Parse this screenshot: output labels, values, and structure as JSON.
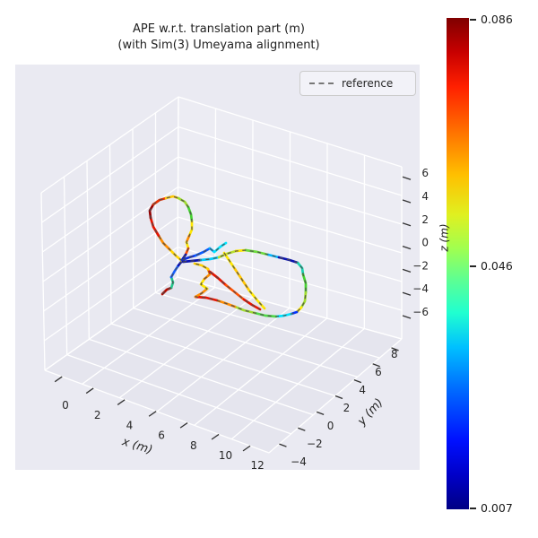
{
  "title": {
    "line1": "APE w.r.t. translation part (m)",
    "line2": "(with Sim(3) Umeyama alignment)"
  },
  "legend": {
    "items": [
      {
        "label": "reference",
        "line_style": "dashed",
        "line_color": "#777777"
      }
    ]
  },
  "axes": {
    "x": {
      "label": "x (m)",
      "tick_labels": [
        "0",
        "2",
        "4",
        "6",
        "8",
        "10",
        "12"
      ]
    },
    "y": {
      "label": "y (m)",
      "tick_labels": [
        "−4",
        "−2",
        "0",
        "2",
        "4",
        "6",
        "8"
      ]
    },
    "z": {
      "label": "z (m)",
      "tick_labels": [
        "−6",
        "−4",
        "−2",
        "0",
        "2",
        "4",
        "6"
      ]
    }
  },
  "colorbar": {
    "tick_labels": [
      "0.086",
      "0.046",
      "0.007"
    ],
    "min": 0.007,
    "mid": 0.046,
    "max": 0.086,
    "colormap": "jet",
    "stops": [
      "#000084 0%",
      "#0000c8 7%",
      "#0010ff 14%",
      "#0070ff 25%",
      "#00c0ff 33%",
      "#20ffd0 40%",
      "#60ff90 47%",
      "#a0ff50 53%",
      "#e0f020 60%",
      "#ffc000 68%",
      "#ff7000 77%",
      "#ff2000 86%",
      "#c80000 93%",
      "#800000 100%"
    ]
  },
  "chart_data": {
    "type": "line",
    "plot_kind": "3d_trajectory_colored_by_error_with_dashed_reference",
    "title": "APE w.r.t. translation part (m) (with Sim(3) Umeyama alignment)",
    "xlabel": "x (m)",
    "ylabel": "y (m)",
    "zlabel": "z (m)",
    "xticks": [
      0,
      2,
      4,
      6,
      8,
      10,
      12
    ],
    "yticks": [
      -4,
      -2,
      0,
      2,
      4,
      6,
      8
    ],
    "zticks": [
      -6,
      -4,
      -2,
      0,
      2,
      4,
      6
    ],
    "colorbar_range": [
      0.007,
      0.086
    ],
    "colorbar_mid_tick": 0.046,
    "legend_entries": [
      "reference"
    ],
    "grid": true,
    "chains": [
      {
        "name": "start_spur",
        "segs": [
          {
            "c": "#b30b00",
            "p": [
              [
                181,
                328
              ],
              [
                186,
                323
              ],
              [
                191,
                321
              ]
            ]
          },
          {
            "c": "#22c98c",
            "p": [
              [
                191,
                321
              ],
              [
                193,
                315
              ],
              [
                191,
                309
              ]
            ]
          },
          {
            "c": "#1560ff",
            "p": [
              [
                191,
                309
              ],
              [
                195,
                302
              ],
              [
                199,
                296
              ]
            ]
          },
          {
            "c": "#0a12b0",
            "p": [
              [
                199,
                296
              ],
              [
                203,
                291
              ]
            ]
          }
        ]
      },
      {
        "name": "upper_left_loop",
        "segs": [
          {
            "c": "#ffd500",
            "p": [
              [
                203,
                291
              ],
              [
                196,
                285
              ],
              [
                189,
                278
              ]
            ]
          },
          {
            "c": "#ff8c00",
            "p": [
              [
                189,
                278
              ],
              [
                182,
                271
              ],
              [
                177,
                263
              ]
            ]
          },
          {
            "c": "#e81500",
            "p": [
              [
                177,
                263
              ],
              [
                171,
                253
              ],
              [
                168,
                243
              ]
            ]
          },
          {
            "c": "#950000",
            "p": [
              [
                168,
                243
              ],
              [
                167,
                235
              ],
              [
                171,
                228
              ]
            ]
          },
          {
            "c": "#e83200",
            "p": [
              [
                171,
                228
              ],
              [
                178,
                223
              ],
              [
                185,
                221
              ]
            ]
          },
          {
            "c": "#ffc800",
            "p": [
              [
                185,
                221
              ],
              [
                193,
                219
              ],
              [
                199,
                221
              ]
            ]
          },
          {
            "c": "#9fdc2e",
            "p": [
              [
                199,
                221
              ],
              [
                206,
                225
              ],
              [
                210,
                231
              ]
            ]
          },
          {
            "c": "#45d430",
            "p": [
              [
                210,
                231
              ],
              [
                213,
                239
              ],
              [
                214,
                247
              ]
            ]
          },
          {
            "c": "#ffe800",
            "p": [
              [
                214,
                247
              ],
              [
                214,
                256
              ],
              [
                211,
                263
              ]
            ]
          },
          {
            "c": "#ff8c00",
            "p": [
              [
                211,
                263
              ],
              [
                208,
                270
              ]
            ]
          },
          {
            "c": "#ffe800",
            "p": [
              [
                208,
                270
              ],
              [
                210,
                277
              ]
            ]
          },
          {
            "c": "#ff5000",
            "p": [
              [
                210,
                277
              ],
              [
                207,
                284
              ]
            ]
          },
          {
            "c": "#0a12b0",
            "p": [
              [
                207,
                284
              ],
              [
                203,
                290
              ]
            ]
          }
        ]
      },
      {
        "name": "spur_up_right",
        "segs": [
          {
            "c": "#0a30e0",
            "p": [
              [
                203,
                290
              ],
              [
                211,
                287
              ],
              [
                218,
                285
              ]
            ]
          },
          {
            "c": "#0a5cff",
            "p": [
              [
                218,
                285
              ],
              [
                227,
                281
              ],
              [
                234,
                277
              ]
            ]
          },
          {
            "c": "#00b7ff",
            "p": [
              [
                234,
                277
              ],
              [
                239,
                281
              ]
            ]
          },
          {
            "c": "#00e5ff",
            "p": [
              [
                239,
                281
              ],
              [
                246,
                275
              ],
              [
                252,
                271
              ]
            ]
          }
        ]
      },
      {
        "name": "main_right_loops",
        "segs": [
          {
            "c": "#0a12b0",
            "p": [
              [
                204,
                292
              ],
              [
                214,
                291
              ],
              [
                224,
                290
              ]
            ]
          },
          {
            "c": "#00cfff",
            "p": [
              [
                224,
                290
              ],
              [
                234,
                289
              ],
              [
                244,
                287
              ]
            ]
          },
          {
            "c": "#b8e02e",
            "p": [
              [
                244,
                287
              ],
              [
                253,
                283
              ],
              [
                263,
                280
              ]
            ]
          },
          {
            "c": "#ffe800",
            "p": [
              [
                263,
                280
              ],
              [
                274,
                279
              ]
            ]
          },
          {
            "c": "#6edc3d",
            "p": [
              [
                274,
                279
              ],
              [
                287,
                281
              ],
              [
                299,
                284
              ]
            ]
          },
          {
            "c": "#00b7ff",
            "p": [
              [
                299,
                284
              ],
              [
                311,
                287
              ]
            ]
          },
          {
            "c": "#0a12b0",
            "p": [
              [
                311,
                287
              ],
              [
                323,
                290
              ],
              [
                332,
                293
              ]
            ]
          },
          {
            "c": "#19d3b0",
            "p": [
              [
                332,
                293
              ],
              [
                337,
                299
              ],
              [
                338,
                306
              ]
            ]
          },
          {
            "c": "#45d430",
            "p": [
              [
                338,
                306
              ],
              [
                341,
                316
              ],
              [
                341,
                326
              ]
            ]
          },
          {
            "c": "#9fdc2e",
            "p": [
              [
                341,
                326
              ],
              [
                340,
                336
              ],
              [
                336,
                343
              ]
            ]
          },
          {
            "c": "#ffe800",
            "p": [
              [
                336,
                343
              ],
              [
                331,
                348
              ]
            ]
          },
          {
            "c": "#0033ff",
            "p": [
              [
                331,
                348
              ],
              [
                325,
                350
              ]
            ]
          },
          {
            "c": "#00e5ff",
            "p": [
              [
                325,
                350
              ],
              [
                317,
                352
              ],
              [
                308,
                353
              ]
            ]
          },
          {
            "c": "#52d94a",
            "p": [
              [
                308,
                353
              ],
              [
                296,
                352
              ],
              [
                284,
                349
              ]
            ]
          },
          {
            "c": "#9fdc2e",
            "p": [
              [
                284,
                349
              ],
              [
                272,
                346
              ],
              [
                262,
                342
              ]
            ]
          },
          {
            "c": "#ff8c00",
            "p": [
              [
                262,
                342
              ],
              [
                251,
                338
              ],
              [
                242,
                335
              ]
            ]
          },
          {
            "c": "#e81500",
            "p": [
              [
                242,
                335
              ],
              [
                230,
                332
              ],
              [
                218,
                331
              ]
            ]
          },
          {
            "c": "#ff8c00",
            "p": [
              [
                218,
                331
              ],
              [
                225,
                327
              ],
              [
                231,
                322
              ]
            ]
          },
          {
            "c": "#ffe800",
            "p": [
              [
                231,
                322
              ],
              [
                224,
                317
              ],
              [
                228,
                311
              ]
            ]
          },
          {
            "c": "#ff8c00",
            "p": [
              [
                228,
                311
              ],
              [
                234,
                306
              ],
              [
                232,
                300
              ]
            ]
          },
          {
            "c": "#ffd000",
            "p": [
              [
                232,
                300
              ],
              [
                225,
                296
              ],
              [
                217,
                294
              ]
            ]
          }
        ]
      },
      {
        "name": "diagonal_yellow",
        "segs": [
          {
            "c": "#ffe800",
            "p": [
              [
                250,
                282
              ],
              [
                256,
                291
              ],
              [
                262,
                300
              ]
            ]
          },
          {
            "c": "#ffc400",
            "p": [
              [
                262,
                300
              ],
              [
                270,
                312
              ],
              [
                278,
                324
              ]
            ]
          },
          {
            "c": "#ffe800",
            "p": [
              [
                278,
                324
              ],
              [
                287,
                335
              ],
              [
                295,
                344
              ]
            ]
          }
        ]
      },
      {
        "name": "diagonal_red",
        "segs": [
          {
            "c": "#e81500",
            "p": [
              [
                234,
                303
              ],
              [
                243,
                310
              ],
              [
                252,
                318
              ]
            ]
          },
          {
            "c": "#ff5000",
            "p": [
              [
                252,
                318
              ],
              [
                262,
                326
              ],
              [
                272,
                334
              ]
            ]
          },
          {
            "c": "#e81500",
            "p": [
              [
                272,
                334
              ],
              [
                281,
                340
              ],
              [
                290,
                345
              ]
            ]
          }
        ]
      }
    ]
  }
}
